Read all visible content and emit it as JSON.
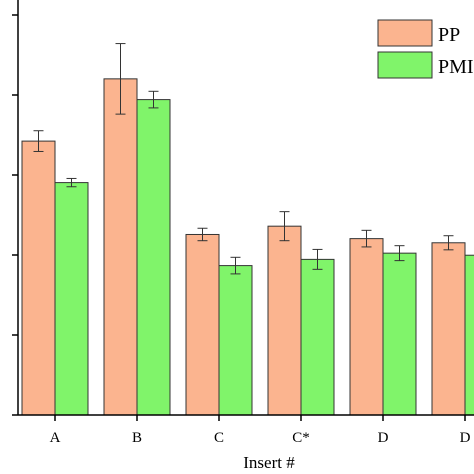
{
  "chart_data": {
    "type": "bar",
    "xlabel": "Insert #",
    "categories": [
      "A",
      "B",
      "C",
      "C*",
      "D",
      "D"
    ],
    "ylim": [
      0,
      1.0
    ],
    "grid": false,
    "legend_position": "top-right",
    "series": [
      {
        "name": "PP",
        "color": "#fbb48f",
        "values": [
          0.66,
          0.81,
          0.435,
          0.455,
          0.425,
          0.415
        ],
        "errors": [
          0.025,
          0.085,
          0.015,
          0.035,
          0.02,
          0.017
        ]
      },
      {
        "name": "PMI",
        "color": "#80f46a",
        "values": [
          0.56,
          0.76,
          0.36,
          0.375,
          0.39,
          0.385
        ],
        "errors": [
          0.01,
          0.02,
          0.02,
          0.024,
          0.018,
          0.0
        ]
      }
    ]
  }
}
